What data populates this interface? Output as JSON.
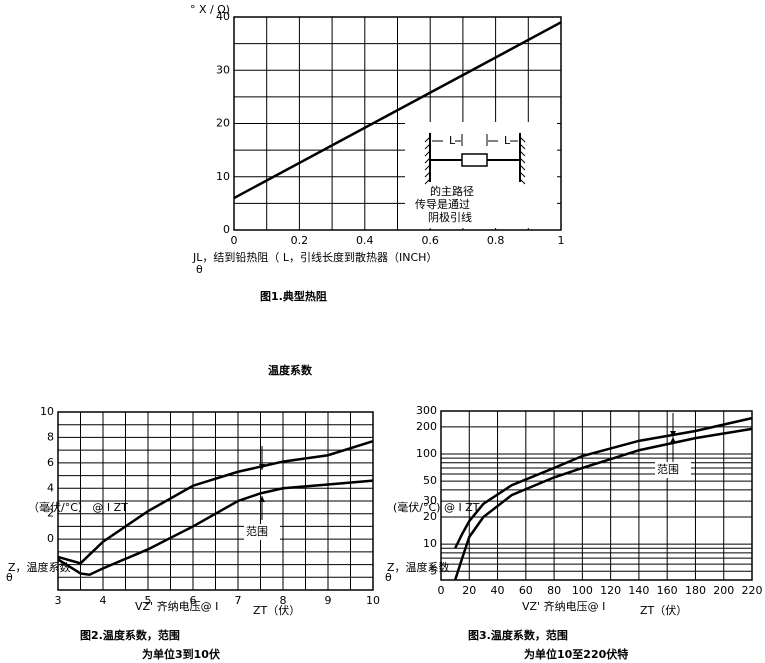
{
  "chart_data": [
    {
      "type": "line",
      "y_label": "° X / Ω)",
      "x_label": "JL，结到铅热阻（   L，引线长度到散热器（INCH）",
      "x_label_symbol": "θ",
      "caption": "图1.典型热阻",
      "annotations": [
        "L",
        "L",
        "的主路径",
        "传导是通过",
        "阴极引线"
      ],
      "series": [
        {
          "color": "#000000",
          "x": [
            0,
            1
          ],
          "values": [
            6,
            39
          ]
        }
      ],
      "xlim": [
        0,
        1
      ],
      "ylim": [
        0,
        40
      ],
      "xticks": [
        0,
        0.2,
        0.4,
        0.6,
        0.8,
        1
      ],
      "yticks": [
        0,
        10,
        20,
        30,
        40
      ],
      "xgrid": [
        0,
        0.1,
        0.2,
        0.3,
        0.4,
        0.5,
        0.6,
        0.7,
        0.8,
        0.9,
        1
      ],
      "ygrid": [
        0,
        5,
        10,
        15,
        20,
        25,
        30,
        35,
        40
      ],
      "ylog": false
    },
    {
      "type": "line",
      "y_label": "（毫伏/°C） @ I ZT",
      "y_label_2": "Z，温度系数",
      "y_label_symbol": "θ",
      "x_label": "VZ'  齐纳电压@ I",
      "x_label_2": "ZT（伏）",
      "caption": "图2.温度系数，范围",
      "caption_2": "为单位3到10伏",
      "annotations": [
        "范围"
      ],
      "series": [
        {
          "color": "#000000",
          "x": [
            3,
            3.5,
            4,
            5,
            6,
            7,
            7.5,
            8,
            9,
            10
          ],
          "values": [
            -1.4,
            -1.9,
            -0.2,
            2.2,
            4.2,
            5.3,
            5.7,
            6.1,
            6.6,
            7.7
          ]
        },
        {
          "color": "#000000",
          "x": [
            3,
            3.5,
            3.7,
            4,
            5,
            6,
            7,
            7.5,
            8,
            9,
            10
          ],
          "values": [
            -1.6,
            -2.7,
            -2.8,
            -2.3,
            -0.8,
            1.0,
            3.0,
            3.6,
            4.0,
            4.3,
            4.6
          ]
        }
      ],
      "xlim": [
        3,
        10
      ],
      "ylim": [
        -4,
        10
      ],
      "xticks": [
        3,
        4,
        5,
        6,
        7,
        8,
        9,
        10
      ],
      "yticks": [
        0,
        2,
        4,
        6,
        8,
        10
      ],
      "xgrid": [
        3,
        3.5,
        4,
        4.5,
        5,
        5.5,
        6,
        6.5,
        7,
        7.5,
        8,
        8.5,
        9,
        9.5,
        10
      ],
      "ygrid": [
        -4,
        -3,
        -2,
        -1,
        0,
        1,
        2,
        3,
        4,
        5,
        6,
        7,
        8,
        9,
        10
      ],
      "ylog": false
    },
    {
      "type": "line",
      "y_label": "(毫伏/°C) @ I ZT",
      "y_label_2": "Z，温度系数",
      "y_label_symbol": "θ",
      "x_label": "VZ'  齐纳电压@ I",
      "x_label_2": "ZT（伏）",
      "caption": "图3.温度系数，范围",
      "caption_2": "为单位10至220伏特",
      "annotations": [
        "范围"
      ],
      "series": [
        {
          "color": "#000000",
          "x": [
            10,
            15,
            20,
            30,
            50,
            80,
            100,
            140,
            180,
            220
          ],
          "values": [
            9,
            13,
            18,
            28,
            45,
            70,
            95,
            140,
            180,
            250
          ]
        },
        {
          "color": "#000000",
          "x": [
            10,
            15,
            20,
            30,
            50,
            80,
            100,
            140,
            180,
            220
          ],
          "values": [
            4,
            7,
            12,
            20,
            35,
            55,
            70,
            110,
            150,
            190
          ]
        }
      ],
      "xlim": [
        0,
        220
      ],
      "ylim": [
        4,
        300
      ],
      "xticks": [
        0,
        20,
        40,
        60,
        80,
        100,
        120,
        140,
        160,
        180,
        200,
        220
      ],
      "yticks": [
        5,
        10,
        20,
        30,
        50,
        100,
        200,
        300
      ],
      "xgrid": [
        0,
        20,
        40,
        60,
        80,
        100,
        120,
        140,
        160,
        180,
        200,
        220
      ],
      "ygrid": [
        4,
        5,
        6,
        7,
        8,
        9,
        10,
        20,
        30,
        40,
        50,
        60,
        70,
        80,
        90,
        100,
        200,
        300
      ],
      "ylog": true
    }
  ],
  "section_title": "温度系数"
}
